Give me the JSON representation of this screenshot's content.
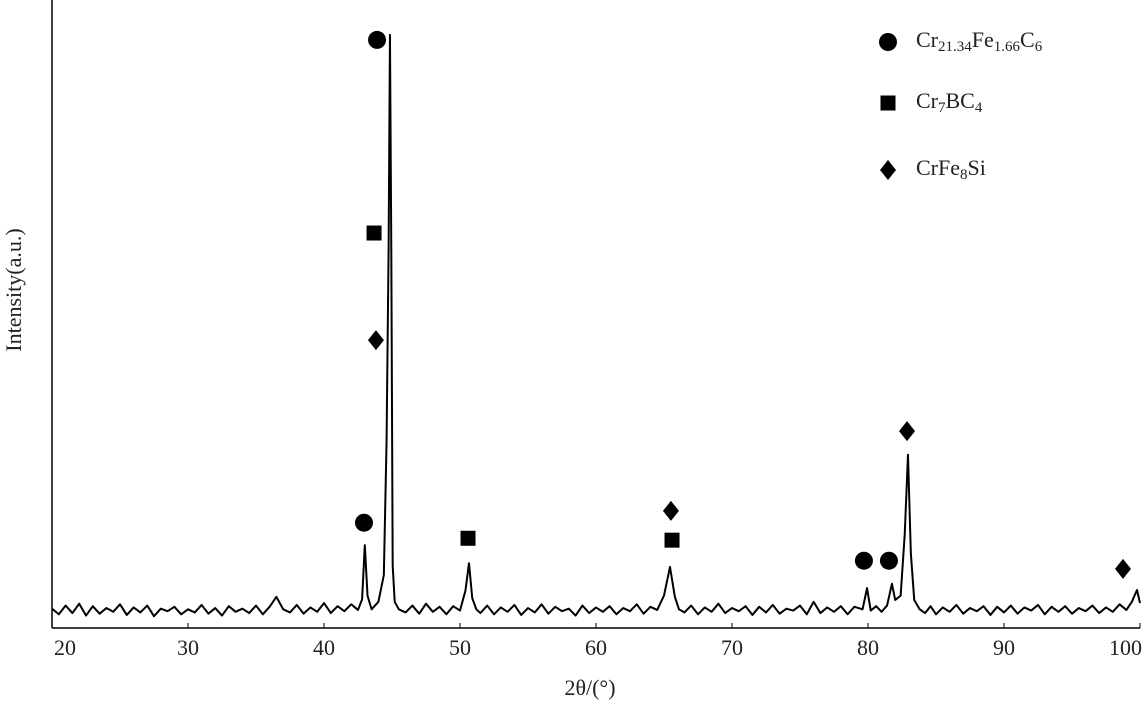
{
  "chart_data": {
    "type": "line",
    "x_label": "2θ/(°)",
    "y_label": "Intensity(a.u.)",
    "color": "#000000",
    "xlim": [
      20,
      100
    ],
    "ylim": [
      0,
      100
    ],
    "xticks": [
      20,
      30,
      40,
      50,
      60,
      70,
      80,
      90,
      100
    ],
    "grid": false,
    "x": [
      20,
      20.5,
      21,
      21.5,
      22,
      22.5,
      23,
      23.5,
      24,
      24.5,
      25,
      25.5,
      26,
      26.5,
      27,
      27.5,
      28,
      28.5,
      29,
      29.5,
      30,
      30.5,
      31,
      31.5,
      32,
      32.5,
      33,
      33.5,
      34,
      34.5,
      35,
      35.5,
      36,
      36.5,
      37,
      37.5,
      38,
      38.5,
      39,
      39.5,
      40,
      40.5,
      41,
      41.5,
      42,
      42.5,
      42.8,
      43,
      43.2,
      43.5,
      44,
      44.4,
      44.6,
      44.75,
      44.85,
      44.95,
      45.05,
      45.2,
      45.5,
      46,
      46.5,
      47,
      47.5,
      48,
      48.5,
      49,
      49.5,
      50,
      50.4,
      50.66,
      50.9,
      51.2,
      51.5,
      52,
      52.5,
      53,
      53.5,
      54,
      54.5,
      55,
      55.5,
      56,
      56.5,
      57,
      57.5,
      58,
      58.5,
      59,
      59.5,
      60,
      60.5,
      61,
      61.5,
      62,
      62.5,
      63,
      63.5,
      64,
      64.5,
      65,
      65.44,
      65.8,
      66.1,
      66.5,
      67,
      67.5,
      68,
      68.5,
      69,
      69.5,
      70,
      70.5,
      71,
      71.5,
      72,
      72.5,
      73,
      73.5,
      74,
      74.5,
      75,
      75.5,
      76,
      76.5,
      77,
      77.5,
      78,
      78.5,
      79,
      79.6,
      79.93,
      80.2,
      80.6,
      81,
      81.4,
      81.76,
      82,
      82.4,
      82.7,
      82.94,
      83.15,
      83.4,
      83.8,
      84.2,
      84.6,
      85,
      85.5,
      86,
      86.5,
      87,
      87.5,
      88,
      88.5,
      89,
      89.5,
      90,
      90.5,
      91,
      91.5,
      92,
      92.5,
      93,
      93.5,
      94,
      94.5,
      95,
      95.5,
      96,
      96.5,
      97,
      97.5,
      98,
      98.5,
      99,
      99.4,
      99.78,
      100
    ],
    "values": [
      3.1,
      2.2,
      3.6,
      2.4,
      3.9,
      2.0,
      3.5,
      2.3,
      3.2,
      2.6,
      3.8,
      2.1,
      3.3,
      2.5,
      3.6,
      1.9,
      3.1,
      2.7,
      3.4,
      2.2,
      3.0,
      2.5,
      3.7,
      2.3,
      3.2,
      2.0,
      3.5,
      2.6,
      3.1,
      2.4,
      3.6,
      2.2,
      3.4,
      5.0,
      3.0,
      2.5,
      3.7,
      2.3,
      3.3,
      2.6,
      4.0,
      2.4,
      3.5,
      2.7,
      3.8,
      2.9,
      4.6,
      13.3,
      5.2,
      3.0,
      4.2,
      8.5,
      30.0,
      60.7,
      95.2,
      60.0,
      10.0,
      4.2,
      3.0,
      2.5,
      3.6,
      2.3,
      3.9,
      2.6,
      3.4,
      2.2,
      3.5,
      2.8,
      6.0,
      10.4,
      4.8,
      3.0,
      2.4,
      3.6,
      2.2,
      3.3,
      2.6,
      3.7,
      2.1,
      3.2,
      2.5,
      3.8,
      2.3,
      3.4,
      2.7,
      3.1,
      2.0,
      3.6,
      2.4,
      3.3,
      2.6,
      3.5,
      2.2,
      3.2,
      2.7,
      3.8,
      2.3,
      3.4,
      2.9,
      5.2,
      9.8,
      5.0,
      3.0,
      2.5,
      3.6,
      2.2,
      3.3,
      2.6,
      3.9,
      2.4,
      3.2,
      2.7,
      3.5,
      2.1,
      3.4,
      2.5,
      3.7,
      2.3,
      3.1,
      2.8,
      3.6,
      2.2,
      4.2,
      2.4,
      3.3,
      2.6,
      3.5,
      2.2,
      3.4,
      3.0,
      6.4,
      2.8,
      3.5,
      2.6,
      3.6,
      7.1,
      4.5,
      5.2,
      15.0,
      27.8,
      12.0,
      4.5,
      3.0,
      2.4,
      3.5,
      2.2,
      3.3,
      2.6,
      3.7,
      2.3,
      3.2,
      2.7,
      3.5,
      2.1,
      3.4,
      2.5,
      3.6,
      2.3,
      3.3,
      2.8,
      3.7,
      2.2,
      3.4,
      2.6,
      3.5,
      2.3,
      3.2,
      2.7,
      3.6,
      2.4,
      3.3,
      2.6,
      3.8,
      2.9,
      4.2,
      6.1,
      4.0
    ],
    "phases": [
      {
        "name": "Cr21.34Fe1.66C6",
        "shape": "circle",
        "color": "#000000",
        "x": [
          43.9,
          42.94,
          79.7,
          81.54
        ],
        "y": [
          94.4,
          16.9,
          10.8,
          10.8
        ]
      },
      {
        "name": "Cr7BC4",
        "shape": "square",
        "color": "#000000",
        "x": [
          43.68,
          50.59,
          65.59
        ],
        "y": [
          63.4,
          14.4,
          14.1
        ]
      },
      {
        "name": "CrFe8Si",
        "shape": "diamond",
        "color": "#000000",
        "x": [
          43.82,
          65.51,
          82.87,
          98.75
        ],
        "y": [
          46.2,
          18.8,
          31.6,
          9.5
        ]
      }
    ]
  }
}
